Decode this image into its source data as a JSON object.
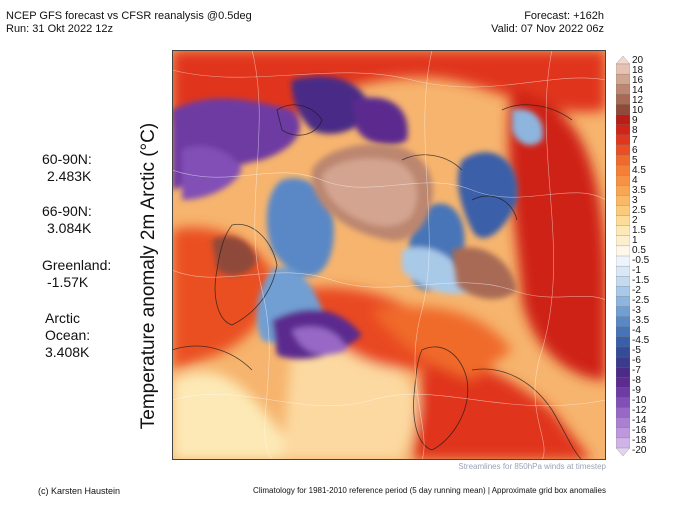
{
  "header": {
    "title": "NCEP GFS forecast vs CFSR reanalysis @0.5deg",
    "run": "Run: 31 Okt 2022 12z",
    "forecast": "Forecast: +162h",
    "valid": "Valid: 07 Nov 2022 06z"
  },
  "y_label": "Temperature anomaly 2m Arctic (°C)",
  "stats": [
    {
      "lines": [
        "60-90N:",
        "2.483K"
      ]
    },
    {
      "lines": [
        "66-90N:",
        "3.084K"
      ]
    },
    {
      "lines": [
        "Greenland:",
        "-1.57K"
      ]
    },
    {
      "lines": [
        "Arctic",
        "Ocean:",
        "3.408K"
      ]
    }
  ],
  "colorbar": {
    "labels": [
      "20",
      "18",
      "16",
      "14",
      "12",
      "10",
      "9",
      "8",
      "7",
      "6",
      "5",
      "4.5",
      "4",
      "3.5",
      "3",
      "2.5",
      "2",
      "1.5",
      "1",
      "0.5",
      "-0.5",
      "-1",
      "-1.5",
      "-2",
      "-2.5",
      "-3",
      "-3.5",
      "-4",
      "-4.5",
      "-5",
      "-6",
      "-7",
      "-8",
      "-9",
      "-10",
      "-12",
      "-14",
      "-16",
      "-18",
      "-20"
    ],
    "colors": [
      "#f2d9cf",
      "#e6c2b3",
      "#d3a490",
      "#bc8670",
      "#a86a55",
      "#8f4a3a",
      "#b81e14",
      "#cf2417",
      "#e0361e",
      "#ea4f24",
      "#f06a2c",
      "#f47f36",
      "#f69243",
      "#f8a653",
      "#f9b966",
      "#fbcb7d",
      "#fcdc98",
      "#fde9b6",
      "#feeed0",
      "#fff7ea",
      "#eef4fb",
      "#d9e8f6",
      "#c3daf0",
      "#a9c9e8",
      "#8db5de",
      "#719fd3",
      "#5a88c6",
      "#4674b8",
      "#3a5fa8",
      "#344c98",
      "#3b3a8c",
      "#4a2c86",
      "#5b2b8f",
      "#6e3aa3",
      "#8150b6",
      "#9868c6",
      "#ab80d3",
      "#bd98dd",
      "#d0b3e7",
      "#e4d2f1"
    ]
  },
  "streamline_note": "Streamlines for 850hPa winds at timestep",
  "footer": {
    "credit": "(c) Karsten Haustein",
    "climatology": "Climatology for 1981-2010 reference period (5 day running mean) | Approximate grid box anomalies"
  }
}
